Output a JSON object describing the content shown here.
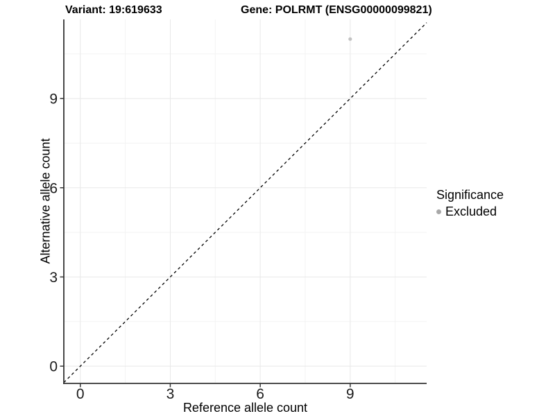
{
  "titles": {
    "variant": "Variant: 19:619633",
    "gene": "Gene: POLRMT (ENSG00000099821)"
  },
  "legend": {
    "title": "Significance",
    "items": [
      {
        "label": "Excluded",
        "color": "#a8a8a8"
      }
    ]
  },
  "chart_data": {
    "type": "scatter",
    "title": "Variant: 19:619633 | Gene: POLRMT (ENSG00000099821)",
    "xlabel": "Reference allele count",
    "ylabel": "Alternative allele count",
    "xlim": [
      -0.55,
      11.55
    ],
    "ylim": [
      -0.58,
      11.66
    ],
    "x_ticks": [
      0,
      3,
      6,
      9
    ],
    "y_ticks": [
      0,
      3,
      6,
      9
    ],
    "x_minor": [
      1.5,
      4.5,
      7.5,
      10.5
    ],
    "y_minor": [
      1.5,
      4.5,
      7.5,
      10.5
    ],
    "grid": true,
    "legend_position": "right",
    "series": [
      {
        "name": "Excluded",
        "color": "#c2c2c2",
        "points": [
          {
            "x": 9,
            "y": 11
          }
        ]
      }
    ],
    "reference_line": {
      "type": "identity",
      "style": "dashed",
      "color": "#000000"
    },
    "theme": {
      "grid_major": "#e8e8e8",
      "grid_minor": "#f3f3f3",
      "axis_line": "#333333",
      "tick_text": "#1a1a1a",
      "background": "#ffffff"
    }
  }
}
